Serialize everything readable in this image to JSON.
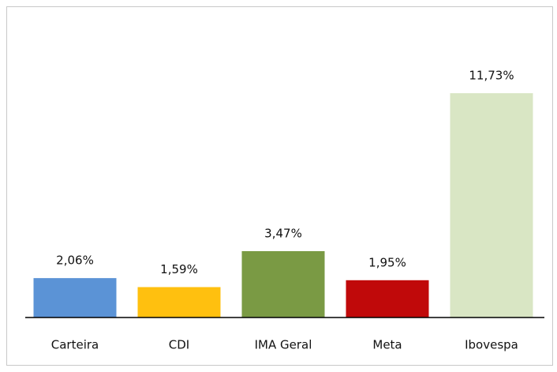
{
  "chart_data": {
    "type": "bar",
    "categories": [
      "Carteira",
      "CDI",
      "IMA Geral",
      "Meta",
      "Ibovespa"
    ],
    "values": [
      2.06,
      1.59,
      3.47,
      1.95,
      11.73
    ],
    "value_labels": [
      "2,06%",
      "1,59%",
      "3,47%",
      "1,95%",
      "11,73%"
    ],
    "colors": [
      "#5b93d6",
      "#ffc00f",
      "#7a9a44",
      "#c0090a",
      "#d9e6c4"
    ]
  }
}
